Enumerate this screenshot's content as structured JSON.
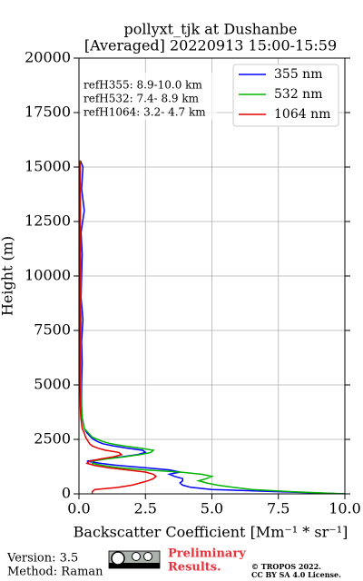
{
  "chart_data": {
    "type": "line",
    "title": "pollyxt_tjk at Dushanbe",
    "subtitle": "[Averaged] 20220913 15:00-15:59",
    "x_label": "Backscatter Coefficient [Mm⁻¹ * sr⁻¹]",
    "y_label": "Height (m)",
    "annotations": [
      "refH355:  8.9-10.0 km",
      "refH532:  7.4- 8.9 km",
      "refH1064:  3.2- 4.7 km"
    ],
    "xlim": [
      0,
      10
    ],
    "xticks": [
      {
        "value": 0,
        "label": "0.0"
      },
      2.5,
      {
        "value": 5,
        "label": "5.0"
      },
      7.5,
      {
        "value": 10,
        "label": "10.0"
      }
    ],
    "ylim": [
      0,
      20000
    ],
    "yticks": [
      0,
      2500,
      5000,
      7500,
      10000,
      12500,
      15000,
      17500,
      20000
    ],
    "grid": true,
    "legend": "upper right",
    "y": [
      0,
      100,
      200,
      300,
      400,
      500,
      600,
      700,
      800,
      900,
      1000,
      1100,
      1200,
      1300,
      1400,
      1500,
      1600,
      1700,
      1800,
      1900,
      2000,
      2100,
      2200,
      2300,
      2400,
      2500,
      2600,
      2800,
      3000,
      3500,
      4000,
      5000,
      6000,
      7000,
      8000,
      9000,
      10000,
      11000,
      12000,
      13000,
      14000,
      15000,
      15300
    ],
    "series": [
      {
        "name": "355 nm",
        "color": "#0000ff",
        "values": [
          10,
          7.5,
          5,
          4.2,
          3.9,
          3.8,
          3.9,
          3.9,
          3.6,
          3.4,
          3.8,
          3.4,
          2.5,
          1.5,
          0.8,
          0.3,
          0.9,
          1.6,
          2.2,
          2.5,
          2.4,
          1.8,
          1.3,
          0.9,
          0.7,
          0.55,
          0.45,
          0.3,
          0.2,
          0.12,
          0.1,
          0.1,
          0.12,
          0.1,
          0.15,
          0.08,
          0.1,
          0.12,
          0.08,
          0.2,
          0.1,
          0.15,
          0.05
        ]
      },
      {
        "name": "532 nm",
        "color": "#00b400",
        "values": [
          10,
          8,
          6.5,
          5.8,
          5.2,
          4.8,
          4.5,
          4.8,
          5,
          4.6,
          3.8,
          2.5,
          1.5,
          0.9,
          0.5,
          0.5,
          1,
          1.7,
          2.3,
          2.7,
          2.8,
          2.3,
          1.7,
          1.2,
          0.9,
          0.7,
          0.5,
          0.35,
          0.2,
          0.12,
          0.1,
          0.08,
          0.08,
          0.07,
          0.08,
          0.06,
          0.07,
          0.06,
          0.05,
          0.06,
          0.05,
          0.05,
          0.04
        ]
      },
      {
        "name": "1064 nm",
        "color": "#e60000",
        "values": [
          0.5,
          0.5,
          0.6,
          1.5,
          2,
          2.3,
          2.6,
          2.8,
          2.9,
          2.8,
          2.5,
          1.8,
          1.1,
          0.6,
          0.3,
          0.4,
          0.8,
          1.3,
          1.6,
          1.5,
          1,
          0.7,
          0.5,
          0.4,
          0.35,
          0.3,
          0.25,
          0.2,
          0.12,
          0.07,
          0.05,
          0.04,
          0.04,
          0.04,
          0.04,
          0.04,
          0.04,
          0.04,
          0.04,
          0.04,
          0.04,
          0.04,
          0.03
        ]
      }
    ]
  },
  "footer": {
    "version": "Version: 3.5",
    "method": "Method: Raman",
    "status": [
      "Preliminary",
      "Results."
    ],
    "copyright": [
      "© TROPOS 2022.",
      "CC BY SA 4.0 License."
    ]
  }
}
